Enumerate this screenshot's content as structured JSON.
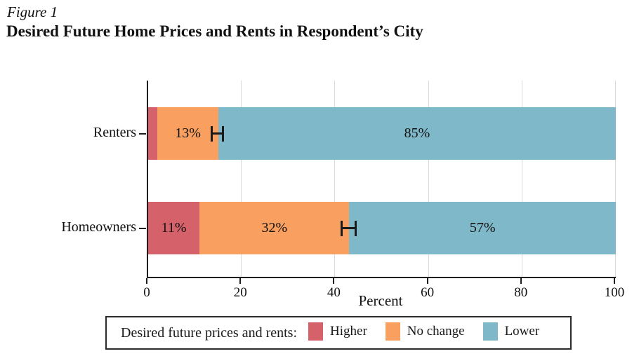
{
  "figure_label": "Figure 1",
  "title": "Desired Future Home Prices and Rents in Respondent’s City",
  "chart_data": {
    "type": "bar",
    "orientation": "horizontal",
    "stacked": true,
    "categories": [
      "Renters",
      "Homeowners"
    ],
    "series": [
      {
        "name": "Higher",
        "color": "#d5626b",
        "values": [
          2,
          11
        ],
        "labels": [
          "",
          "11%"
        ]
      },
      {
        "name": "No change",
        "color": "#f9a061",
        "values": [
          13,
          32
        ],
        "labels": [
          "13%",
          "32%"
        ]
      },
      {
        "name": "Lower",
        "color": "#7fb8c8",
        "values": [
          85,
          57
        ],
        "labels": [
          "85%",
          "57%"
        ]
      }
    ],
    "error_bars": [
      {
        "category": "Renters",
        "center": 15,
        "low": 13.4,
        "high": 16.2
      },
      {
        "category": "Homeowners",
        "center": 43,
        "low": 41.2,
        "high": 44.6
      }
    ],
    "xlabel": "Percent",
    "xlim": [
      0,
      100
    ],
    "xticks": [
      "0",
      "20",
      "40",
      "60",
      "80",
      "100"
    ],
    "grid": "vertical-light-gray",
    "axis_color": "#1f1f1f",
    "legend": {
      "position": "bottom",
      "title": "Desired future prices and rents:",
      "entries": [
        {
          "label": "Higher",
          "color": "#d5626b"
        },
        {
          "label": "No change",
          "color": "#f9a061"
        },
        {
          "label": "Lower",
          "color": "#7fb8c8"
        }
      ]
    }
  }
}
